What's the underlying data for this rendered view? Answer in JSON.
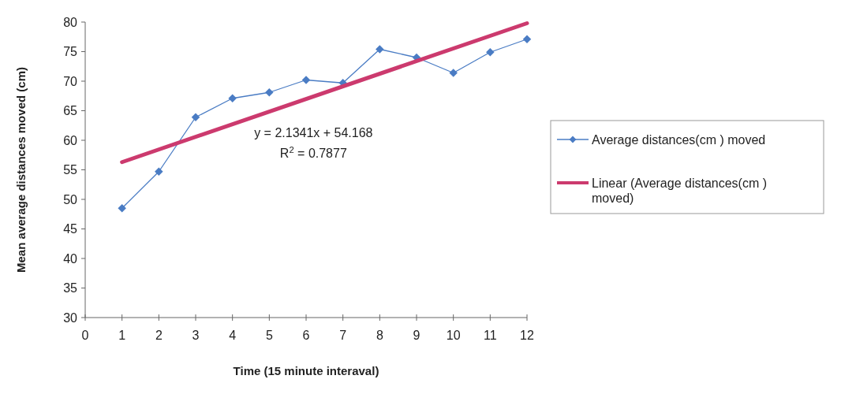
{
  "chart_data": {
    "type": "line",
    "xlabel": "Time (15 minute interaval)",
    "ylabel": "Mean average distances moved (cm)",
    "xlim": [
      0,
      12
    ],
    "xticks": [
      0,
      1,
      2,
      3,
      4,
      5,
      6,
      7,
      8,
      9,
      10,
      11,
      12
    ],
    "ylim": [
      30,
      80
    ],
    "yticks": [
      30,
      35,
      40,
      45,
      50,
      55,
      60,
      65,
      70,
      75,
      80
    ],
    "x": [
      1,
      2,
      3,
      4,
      5,
      6,
      7,
      8,
      9,
      10,
      11,
      12
    ],
    "series": [
      {
        "name": "Average distances(cm ) moved",
        "color": "#4a7cc4",
        "marker": "diamond",
        "values": [
          48.5,
          54.7,
          63.9,
          67.1,
          68.1,
          70.2,
          69.7,
          75.4,
          74.0,
          71.4,
          74.9,
          77.1
        ]
      },
      {
        "name": "Linear (Average distances(cm ) moved)",
        "color": "#cc3a6e",
        "marker": "none",
        "x": [
          1,
          12
        ],
        "values": [
          56.3,
          79.8
        ]
      }
    ],
    "annotations": [
      "y = 2.1341x + 54.168",
      "R$^{2}$ = 0.7877"
    ],
    "grid": false,
    "legend": "right"
  }
}
